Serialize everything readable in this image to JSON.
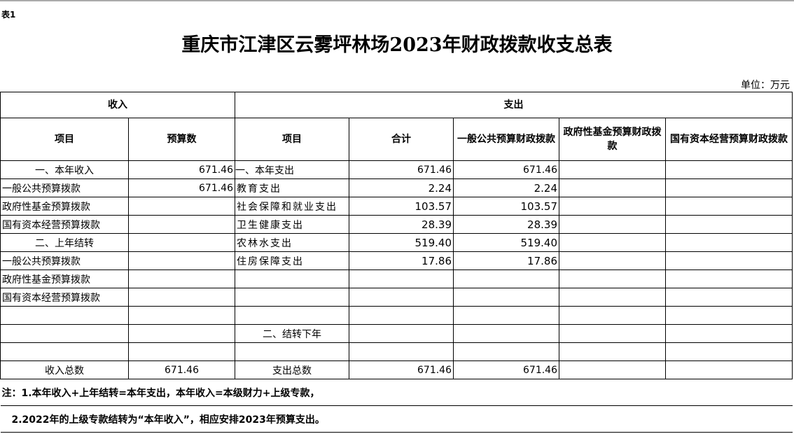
{
  "tag": "表1",
  "title": "重庆市江津区云雾坪林场2023年财政拨款收支总表",
  "unit": "单位：万元",
  "header": {
    "income": "收入",
    "expense": "支出",
    "cols": [
      "项目",
      "预算数",
      "项目",
      "合计",
      "一般公共预算财政拨款",
      "政府性基金预算财政拨款",
      "国有资本经营预算财政拨款"
    ]
  },
  "rows": [
    [
      "一、本年收入",
      "671.46",
      "一、本年支出",
      "671.46",
      "671.46",
      "",
      ""
    ],
    [
      "一般公共预算拨款",
      "671.46",
      "教育支出",
      "2.24",
      "2.24",
      "",
      ""
    ],
    [
      "政府性基金预算拨款",
      "",
      "社会保障和就业支出",
      "103.57",
      "103.57",
      "",
      ""
    ],
    [
      "国有资本经营预算拨款",
      "",
      "卫生健康支出",
      "28.39",
      "28.39",
      "",
      ""
    ],
    [
      "二、上年结转",
      "",
      "农林水支出",
      "519.40",
      "519.40",
      "",
      ""
    ],
    [
      "一般公共预算拨款",
      "",
      "住房保障支出",
      "17.86",
      "17.86",
      "",
      ""
    ],
    [
      "政府性基金预算拨款",
      "",
      "",
      "",
      "",
      "",
      ""
    ],
    [
      "国有资本经营预算拨款",
      "",
      "",
      "",
      "",
      "",
      ""
    ],
    [
      "",
      "",
      "",
      "",
      "",
      "",
      ""
    ],
    [
      "",
      "",
      "二、结转下年",
      "",
      "",
      "",
      ""
    ],
    [
      "",
      "",
      "",
      "",
      "",
      "",
      ""
    ],
    [
      "收入总数",
      "671.46",
      "支出总数",
      "671.46",
      "671.46",
      "",
      ""
    ]
  ],
  "notes": [
    "注：1.本年收入+上年结转=本年支出，本年收入=本级财力+上级专款，",
    "2.2022年的上级专款结转为“本年收入”，相应安排2023年预算支出。"
  ]
}
